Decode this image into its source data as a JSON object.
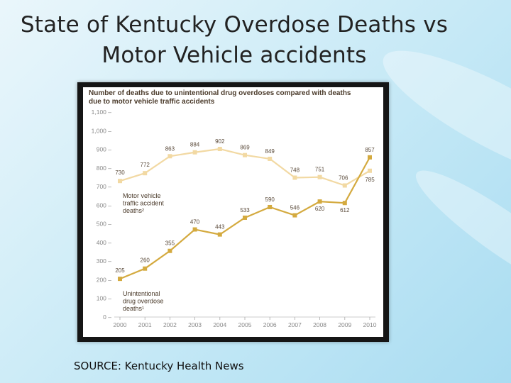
{
  "slide": {
    "title_line1": "State of Kentucky Overdose Deaths vs",
    "title_line2": "Motor Vehicle accidents",
    "source": "SOURCE: Kentucky Health News"
  },
  "chart_data": {
    "type": "line",
    "title": "Number of deaths due to unintentional drug overdoses compared with deaths due to motor vehicle traffic accidents",
    "title_line1": "Number of deaths due to unintentional drug overdoses compared with deaths",
    "title_line2": "due to motor vehicle traffic accidents",
    "x": [
      "2000",
      "2001",
      "2002",
      "2003",
      "2004",
      "2005",
      "2006",
      "2007",
      "2008",
      "2009",
      "2010"
    ],
    "ylim": [
      0,
      1100
    ],
    "yticks": [
      {
        "value": 0,
        "label": "0 –"
      },
      {
        "value": 100,
        "label": "100 –"
      },
      {
        "value": 200,
        "label": "200 –"
      },
      {
        "value": 300,
        "label": "300 –"
      },
      {
        "value": 400,
        "label": "400 –"
      },
      {
        "value": 500,
        "label": "500 –"
      },
      {
        "value": 600,
        "label": "600 –"
      },
      {
        "value": 700,
        "label": "700 –"
      },
      {
        "value": 800,
        "label": "800 –"
      },
      {
        "value": 900,
        "label": "900 –"
      },
      {
        "value": 1000,
        "label": "1,000 –"
      },
      {
        "value": 1100,
        "label": "1,100 –"
      }
    ],
    "grid": false,
    "series": [
      {
        "key": "motor",
        "name_lines": [
          "Motor vehicle",
          "traffic accident",
          "deaths²"
        ],
        "color": "#f2d9a3",
        "values": [
          730,
          772,
          863,
          884,
          902,
          869,
          849,
          748,
          751,
          706,
          785
        ]
      },
      {
        "key": "overdose",
        "name_lines": [
          "Unintentional",
          "drug overdose",
          "deaths¹"
        ],
        "color": "#d4aa3f",
        "values": [
          205,
          260,
          355,
          470,
          443,
          533,
          590,
          546,
          620,
          612,
          857
        ]
      }
    ]
  }
}
